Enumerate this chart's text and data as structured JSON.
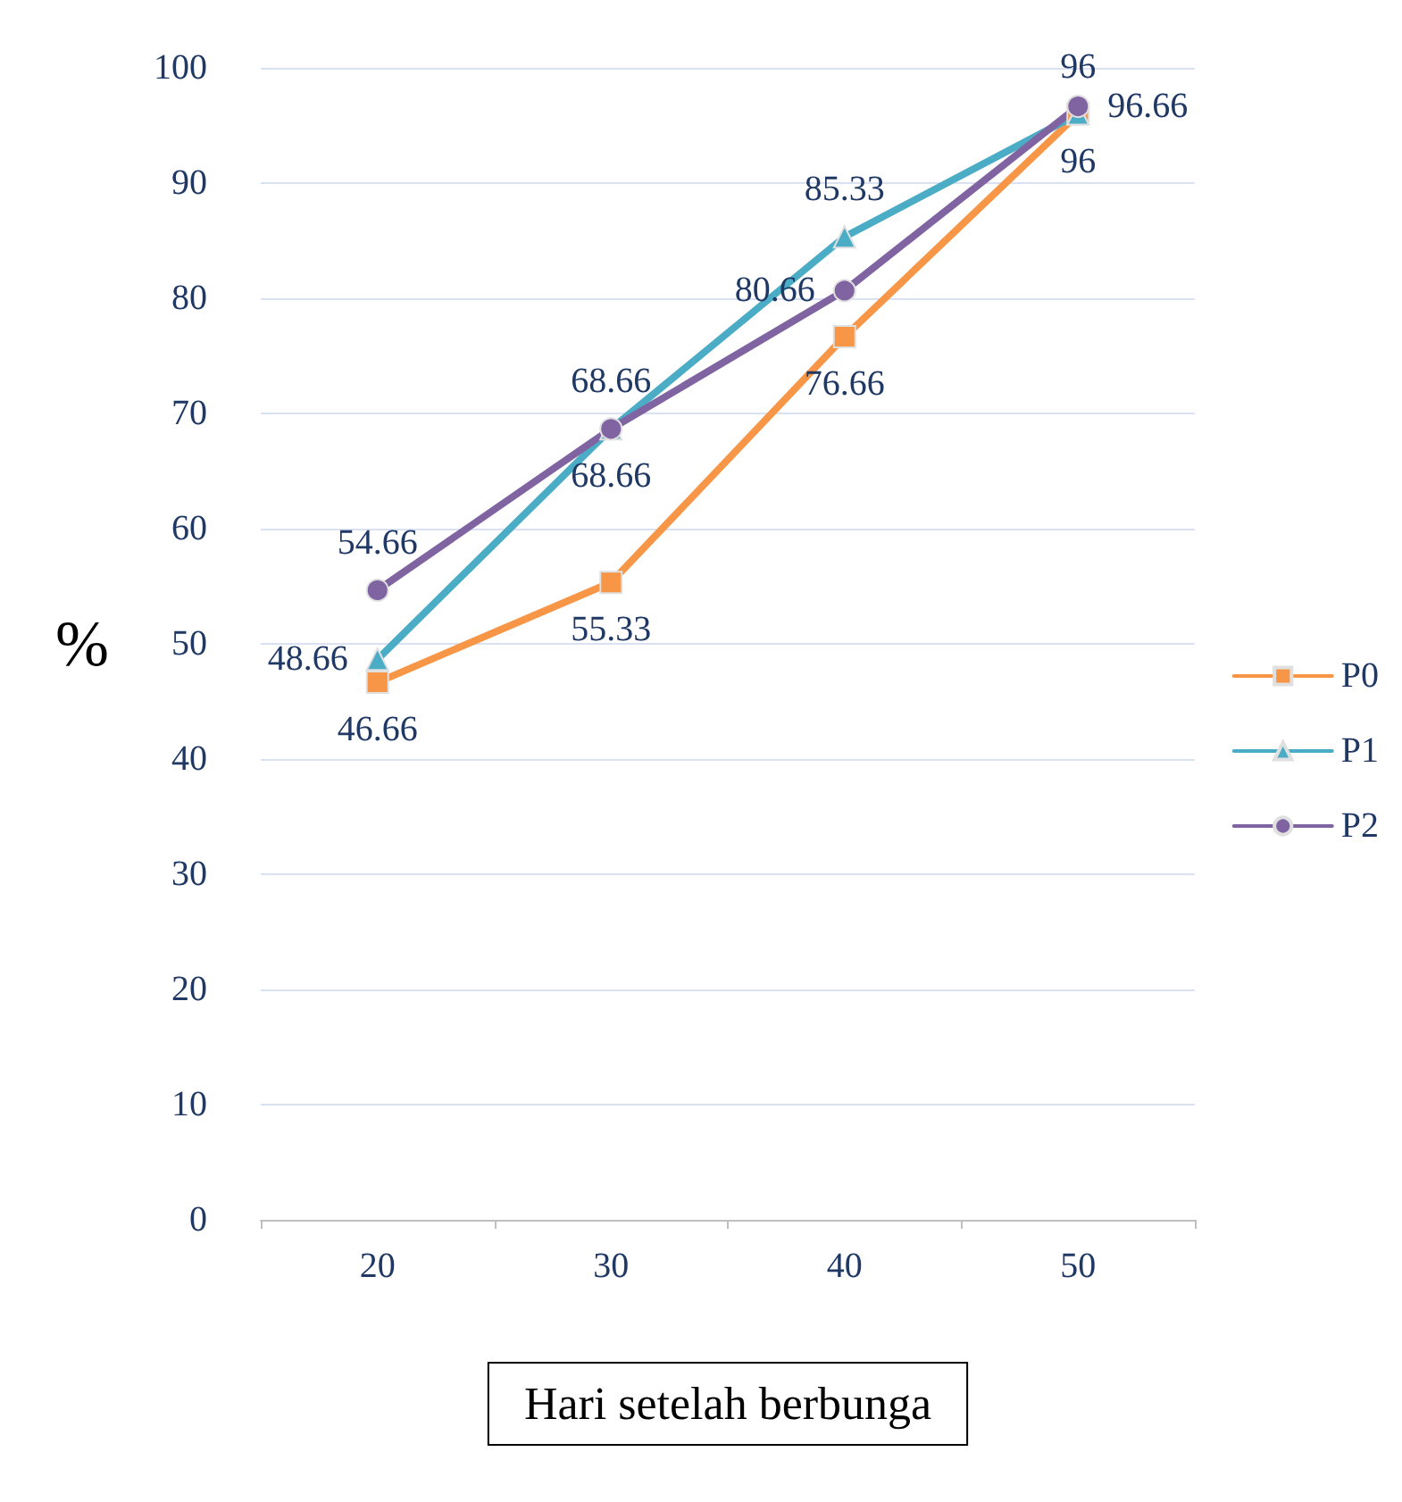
{
  "chart_data": {
    "type": "line",
    "xlabel": "Hari setelah berbunga",
    "ylabel": "%",
    "categories": [
      "20",
      "30",
      "40",
      "50"
    ],
    "series": [
      {
        "name": "P0",
        "color": "#f79646",
        "marker": "square",
        "values": [
          46.66,
          55.33,
          76.66,
          96
        ]
      },
      {
        "name": "P1",
        "color": "#4bacc6",
        "marker": "triangle",
        "values": [
          48.66,
          68.66,
          85.33,
          96
        ]
      },
      {
        "name": "P2",
        "color": "#8064a2",
        "marker": "circle",
        "values": [
          54.66,
          68.66,
          80.66,
          96.66
        ]
      }
    ],
    "ylim": [
      0,
      100
    ],
    "yticks": [
      0,
      10,
      20,
      30,
      40,
      50,
      60,
      70,
      80,
      90,
      100
    ],
    "grid": "y",
    "legend": "right",
    "data_labels": true
  }
}
